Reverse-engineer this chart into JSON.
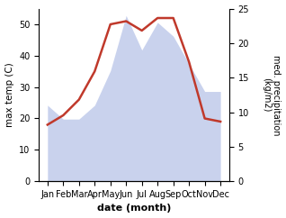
{
  "months": [
    "Jan",
    "Feb",
    "Mar",
    "Apr",
    "May",
    "Jun",
    "Jul",
    "Aug",
    "Sep",
    "Oct",
    "Nov",
    "Dec"
  ],
  "temperature": [
    18,
    21,
    26,
    35,
    50,
    51,
    48,
    52,
    52,
    38,
    20,
    19
  ],
  "precipitation": [
    11,
    9,
    9,
    11,
    16,
    24,
    19,
    23,
    21,
    17,
    13,
    13
  ],
  "temp_color": "#c0392b",
  "precip_color": "#b8c4e8",
  "left_ylabel": "max temp (C)",
  "right_ylabel": "med. precipitation\n(kg/m2)",
  "xlabel": "date (month)",
  "ylim_left": [
    0,
    55
  ],
  "ylim_right": [
    0,
    25
  ],
  "left_yticks": [
    0,
    10,
    20,
    30,
    40,
    50
  ],
  "right_yticks": [
    0,
    5,
    10,
    15,
    20,
    25
  ],
  "background_color": "#ffffff",
  "temp_linewidth": 1.8,
  "figsize": [
    3.18,
    2.42
  ],
  "dpi": 100
}
